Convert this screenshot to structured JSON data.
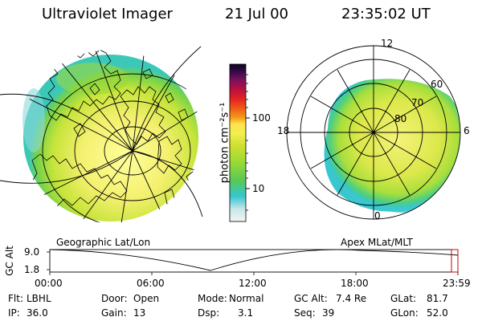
{
  "header": {
    "instrument": "Ultraviolet Imager",
    "date": "21 Jul 00",
    "time": "23:35:02 UT"
  },
  "colorbar": {
    "unit_label": "photon cm⁻²s⁻¹",
    "ticks": [
      "100",
      "10"
    ],
    "colors": [
      "#f2f2f2",
      "#c6e6ea",
      "#35c6cf",
      "#58c858",
      "#9adb34",
      "#cce030",
      "#f4ee50",
      "#ffee66",
      "#f49a1a",
      "#ef5a16",
      "#e32222",
      "#b81040",
      "#7a1060",
      "#3a0a4a",
      "#0a0620"
    ]
  },
  "left_map": {
    "caption": "Geographic Lat/Lon"
  },
  "right_map": {
    "caption": "Apex MLat/MLT",
    "mlt_labels": {
      "top": "12",
      "left": "18",
      "right": "6",
      "bottom": "0"
    },
    "lat_labels": [
      "60",
      "70",
      "80"
    ]
  },
  "timeline": {
    "y_label": "GC Alt",
    "y_ticks": [
      "9.0",
      "1.8"
    ],
    "x_ticks": [
      "00:00",
      "06:00",
      "12:00",
      "18:00",
      "23:59"
    ]
  },
  "footer": {
    "filter_label": "Flt:",
    "filter_value": "LBHL",
    "door_label": "Door:",
    "door_value": "Open",
    "mode_label": "Mode:",
    "mode_value": "Normal",
    "gcalt_label": "GC Alt:",
    "gcalt_value": "7.4 Re",
    "glat_label": "GLat:",
    "glat_value": "81.7",
    "ip_label": "IP:",
    "ip_value": "36.0",
    "gain_label": "Gain:",
    "gain_value": "13",
    "dsp_label": "Dsp:",
    "dsp_value": "3.1",
    "seq_label": "Seq:",
    "seq_value": "39",
    "glon_label": "GLon:",
    "glon_value": "52.0"
  }
}
